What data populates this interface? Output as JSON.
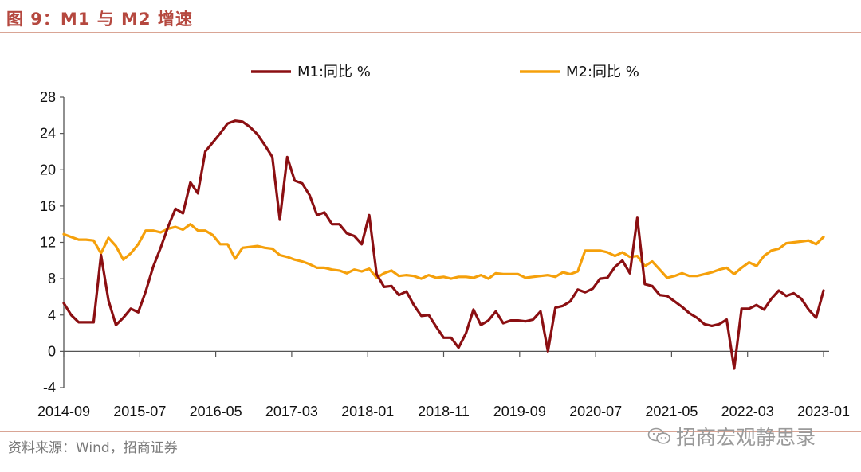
{
  "header": {
    "title": "图 9：M1 与 M2 增速"
  },
  "footer": {
    "source": "资料来源：Wind，招商证券",
    "watermark": "招商宏观静思录"
  },
  "colors": {
    "m1": "#8b0f12",
    "m2": "#f5a00b",
    "accent": "#b5483f"
  },
  "chart_data": {
    "type": "line",
    "x_tick_labels": [
      "2014-09",
      "2015-07",
      "2016-05",
      "2017-03",
      "2018-01",
      "2018-11",
      "2019-09",
      "2020-07",
      "2021-05",
      "2022-03",
      "2023-01"
    ],
    "y_ticks": [
      -4,
      0,
      4,
      8,
      12,
      16,
      20,
      24,
      28
    ],
    "ylim": [
      -4,
      28
    ],
    "legend_position": "top",
    "grid": false,
    "series": [
      {
        "name": "M1:同比 %",
        "color": "#8b0f12",
        "values": [
          5.3,
          4.0,
          3.2,
          3.2,
          3.2,
          10.6,
          5.6,
          2.9,
          3.7,
          4.7,
          4.3,
          6.6,
          9.3,
          11.4,
          13.7,
          15.7,
          15.2,
          18.6,
          17.4,
          22.0,
          23.0,
          24.0,
          25.1,
          25.4,
          25.3,
          24.7,
          23.9,
          22.7,
          21.4,
          14.5,
          21.4,
          18.8,
          18.5,
          17.2,
          15.0,
          15.3,
          14.0,
          14.0,
          13.0,
          12.7,
          11.8,
          15.0,
          8.5,
          7.1,
          7.2,
          6.2,
          6.6,
          5.1,
          3.9,
          4.0,
          2.7,
          1.5,
          1.5,
          0.4,
          2.0,
          4.6,
          2.9,
          3.4,
          4.4,
          3.1,
          3.4,
          3.4,
          3.3,
          3.5,
          4.4,
          0.0,
          4.8,
          5.0,
          5.5,
          6.8,
          6.5,
          6.9,
          8.0,
          8.1,
          9.3,
          10.0,
          8.6,
          14.7,
          7.4,
          7.2,
          6.2,
          6.1,
          5.5,
          4.9,
          4.2,
          3.7,
          3.0,
          2.8,
          3.0,
          3.5,
          -1.9,
          4.7,
          4.7,
          5.1,
          4.6,
          5.8,
          6.7,
          6.1,
          6.4,
          5.8,
          4.6,
          3.7,
          6.7
        ]
      },
      {
        "name": "M2:同比 %",
        "color": "#f5a00b",
        "values": [
          12.9,
          12.6,
          12.3,
          12.3,
          12.2,
          10.8,
          12.5,
          11.6,
          10.1,
          10.8,
          11.8,
          13.3,
          13.3,
          13.1,
          13.5,
          13.7,
          13.4,
          14.0,
          13.3,
          13.3,
          12.8,
          11.8,
          11.8,
          10.2,
          11.4,
          11.5,
          11.6,
          11.4,
          11.3,
          10.6,
          10.4,
          10.1,
          9.9,
          9.6,
          9.2,
          9.2,
          9.0,
          8.9,
          8.6,
          9.0,
          8.8,
          9.1,
          8.1,
          8.6,
          8.9,
          8.3,
          8.4,
          8.3,
          8.0,
          8.4,
          8.1,
          8.2,
          8.0,
          8.2,
          8.2,
          8.1,
          8.4,
          8.0,
          8.6,
          8.5,
          8.5,
          8.5,
          8.1,
          8.2,
          8.3,
          8.4,
          8.2,
          8.7,
          8.5,
          8.8,
          11.1,
          11.1,
          11.1,
          10.9,
          10.5,
          10.9,
          10.4,
          10.5,
          9.4,
          9.9,
          9.0,
          8.1,
          8.3,
          8.6,
          8.3,
          8.3,
          8.5,
          8.7,
          9.0,
          9.2,
          8.5,
          9.2,
          9.8,
          9.4,
          10.5,
          11.1,
          11.3,
          11.9,
          12.0,
          12.1,
          12.2,
          11.8,
          12.6
        ]
      }
    ]
  }
}
